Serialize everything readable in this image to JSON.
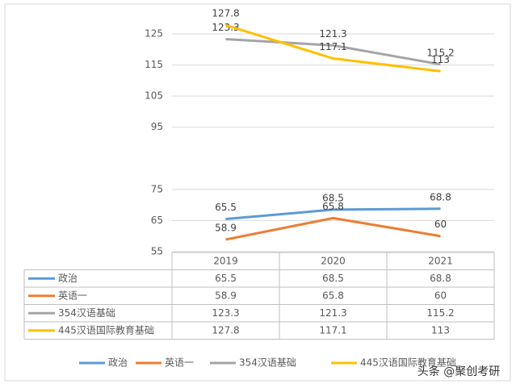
{
  "chart_data": {
    "type": "line",
    "categories": [
      "2019",
      "2020",
      "2021"
    ],
    "series": [
      {
        "name": "政治",
        "color": "#5b9bd5",
        "values": [
          65.5,
          68.5,
          68.8
        ]
      },
      {
        "name": "英语一",
        "color": "#ed7d31",
        "values": [
          58.9,
          65.8,
          60
        ]
      },
      {
        "name": "354汉语基础",
        "color": "#a5a5a5",
        "values": [
          123.3,
          121.3,
          115.2
        ]
      },
      {
        "name": "445汉语国际教育基础",
        "color": "#ffc000",
        "values": [
          127.8,
          117.1,
          113
        ]
      }
    ],
    "ylim": [
      55,
      125
    ],
    "yticks": [
      55,
      65,
      75,
      95,
      105,
      115,
      125
    ],
    "grid": true,
    "legend": "bottom",
    "watermark": "头条 @聚创考研"
  }
}
